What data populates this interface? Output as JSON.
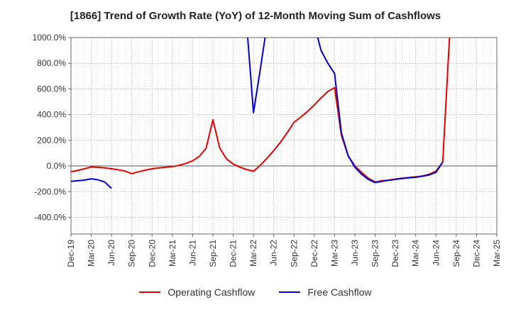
{
  "title": "[1866]  Trend of Growth Rate (YoY) of 12-Month Moving Sum of Cashflows",
  "chart_data": {
    "type": "line",
    "title": "[1866]  Trend of Growth Rate (YoY) of 12-Month Moving Sum of Cashflows",
    "xlabel": "",
    "ylabel": "",
    "ylim": [
      -530,
      1000
    ],
    "yticks": [
      1000,
      800,
      600,
      400,
      200,
      0,
      -200,
      -400
    ],
    "ytick_labels": [
      "1000.0%",
      "800.0%",
      "600.0%",
      "400.0%",
      "200.0%",
      "0.0%",
      "-200.0%",
      "-400.0%"
    ],
    "x_tick_labels": [
      "Dec-19",
      "Mar-20",
      "Jun-20",
      "Sep-20",
      "Dec-20",
      "Mar-21",
      "Jun-21",
      "Sep-21",
      "Dec-21",
      "Mar-22",
      "Jun-22",
      "Sep-22",
      "Dec-22",
      "Mar-23",
      "Jun-23",
      "Sep-23",
      "Dec-23",
      "Mar-24",
      "Jun-24",
      "Sep-24",
      "Dec-24",
      "Mar-25"
    ],
    "months": [
      "Dec-19",
      "Jan-20",
      "Feb-20",
      "Mar-20",
      "Apr-20",
      "May-20",
      "Jun-20",
      "Jul-20",
      "Aug-20",
      "Sep-20",
      "Oct-20",
      "Nov-20",
      "Dec-20",
      "Jan-21",
      "Feb-21",
      "Mar-21",
      "Apr-21",
      "May-21",
      "Jun-21",
      "Jul-21",
      "Aug-21",
      "Sep-21",
      "Oct-21",
      "Nov-21",
      "Dec-21",
      "Jan-22",
      "Feb-22",
      "Mar-22",
      "Apr-22",
      "May-22",
      "Jun-22",
      "Jul-22",
      "Aug-22",
      "Sep-22",
      "Oct-22",
      "Nov-22",
      "Dec-22",
      "Jan-23",
      "Feb-23",
      "Mar-23",
      "Apr-23",
      "May-23",
      "Jun-23",
      "Jul-23",
      "Aug-23",
      "Sep-23",
      "Oct-23",
      "Nov-23",
      "Dec-23",
      "Jan-24",
      "Feb-24",
      "Mar-24",
      "Apr-24",
      "May-24",
      "Jun-24",
      "Jul-24",
      "Aug-24",
      "Sep-24",
      "Oct-24",
      "Nov-24",
      "Dec-24",
      "Jan-25",
      "Feb-25",
      "Mar-25"
    ],
    "grid": true,
    "legend_position": "bottom",
    "series": [
      {
        "name": "Operating Cashflow",
        "color": "#e60000",
        "values": [
          -45,
          -35,
          -22,
          -8,
          -10,
          -15,
          -22,
          -30,
          -40,
          -60,
          -45,
          -33,
          -22,
          -15,
          -10,
          -5,
          5,
          20,
          40,
          75,
          140,
          360,
          140,
          55,
          15,
          -10,
          -28,
          -42,
          5,
          60,
          120,
          185,
          260,
          340,
          380,
          425,
          475,
          530,
          580,
          610,
          240,
          80,
          0,
          -50,
          -95,
          -125,
          -115,
          -110,
          -102,
          -95,
          -90,
          -85,
          -78,
          -65,
          -40,
          30,
          1000,
          null,
          null,
          null,
          null,
          null,
          null,
          null
        ]
      },
      {
        "name": "Free Cashflow",
        "color": "#0000cc",
        "values": [
          -120,
          -115,
          -110,
          -100,
          -108,
          -125,
          -175,
          null,
          null,
          null,
          null,
          null,
          null,
          null,
          null,
          null,
          null,
          null,
          null,
          null,
          null,
          null,
          null,
          null,
          null,
          null,
          1100,
          415,
          750,
          1100,
          null,
          null,
          null,
          null,
          null,
          null,
          1100,
          900,
          800,
          720,
          260,
          80,
          -10,
          -65,
          -105,
          -130,
          -120,
          -112,
          -105,
          -98,
          -92,
          -88,
          -80,
          -70,
          -50,
          30,
          null,
          null,
          null,
          null,
          null,
          null,
          null,
          null
        ]
      }
    ]
  },
  "legend": {
    "operating": "Operating Cashflow",
    "free": "Free Cashflow"
  }
}
